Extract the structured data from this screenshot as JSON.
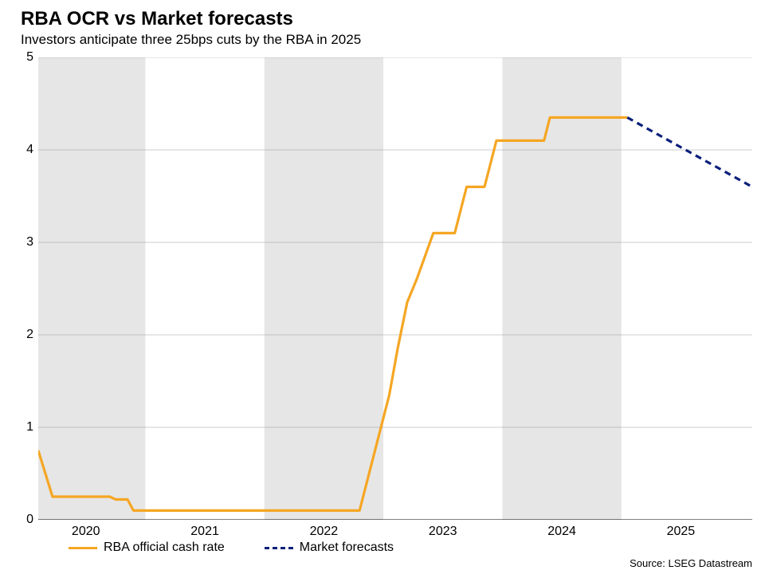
{
  "chart": {
    "type": "line",
    "title": "RBA OCR vs Market forecasts",
    "subtitle": "Investors anticipate three 25bps cuts by the RBA in 2025",
    "title_fontsize": 24,
    "subtitle_fontsize": 17,
    "background_color": "#ffffff",
    "plot_background_color": "#ffffff",
    "shaded_band_color": "#e6e6e6",
    "grid_color": "#999999",
    "grid_line_width": 0.5,
    "axis_line_color": "#000000",
    "axis_line_width": 1,
    "tick_font_size": 16,
    "x": {
      "min": 2019.6,
      "max": 2025.6,
      "ticks": [
        2020,
        2021,
        2022,
        2023,
        2024,
        2025
      ],
      "tick_labels": [
        "2020",
        "2021",
        "2022",
        "2023",
        "2024",
        "2025"
      ]
    },
    "y": {
      "min": 0,
      "max": 5,
      "ticks": [
        0,
        1,
        2,
        3,
        4,
        5
      ],
      "tick_labels": [
        "0",
        "1",
        "2",
        "3",
        "4",
        "5"
      ]
    },
    "shaded_bands_x": [
      [
        2019.6,
        2020.5
      ],
      [
        2021.5,
        2022.5
      ],
      [
        2023.5,
        2024.5
      ]
    ],
    "series": {
      "rba": {
        "label": "RBA official cash rate",
        "color": "#f5a623",
        "line_width": 3.2,
        "dash": "none",
        "points": [
          [
            2019.6,
            0.75
          ],
          [
            2019.72,
            0.25
          ],
          [
            2020.2,
            0.25
          ],
          [
            2020.25,
            0.22
          ],
          [
            2020.35,
            0.22
          ],
          [
            2020.4,
            0.1
          ],
          [
            2022.3,
            0.1
          ],
          [
            2022.35,
            0.35
          ],
          [
            2022.45,
            0.85
          ],
          [
            2022.55,
            1.35
          ],
          [
            2022.62,
            1.85
          ],
          [
            2022.7,
            2.35
          ],
          [
            2022.78,
            2.6
          ],
          [
            2022.85,
            2.85
          ],
          [
            2022.92,
            3.1
          ],
          [
            2023.1,
            3.1
          ],
          [
            2023.15,
            3.35
          ],
          [
            2023.2,
            3.6
          ],
          [
            2023.35,
            3.6
          ],
          [
            2023.4,
            3.85
          ],
          [
            2023.45,
            4.1
          ],
          [
            2023.85,
            4.1
          ],
          [
            2023.9,
            4.35
          ],
          [
            2024.55,
            4.35
          ]
        ]
      },
      "forecast": {
        "label": "Market forecasts",
        "color": "#0b1f7a",
        "line_width": 3.2,
        "dash": "8 6",
        "points": [
          [
            2024.55,
            4.35
          ],
          [
            2025.6,
            3.6
          ]
        ]
      }
    },
    "legend": {
      "items": [
        {
          "key": "rba",
          "label": "RBA official cash rate"
        },
        {
          "key": "forecast",
          "label": "Market forecasts"
        }
      ],
      "font_size": 16
    },
    "source": "Source: LSEG Datastream",
    "source_font_size": 13
  }
}
